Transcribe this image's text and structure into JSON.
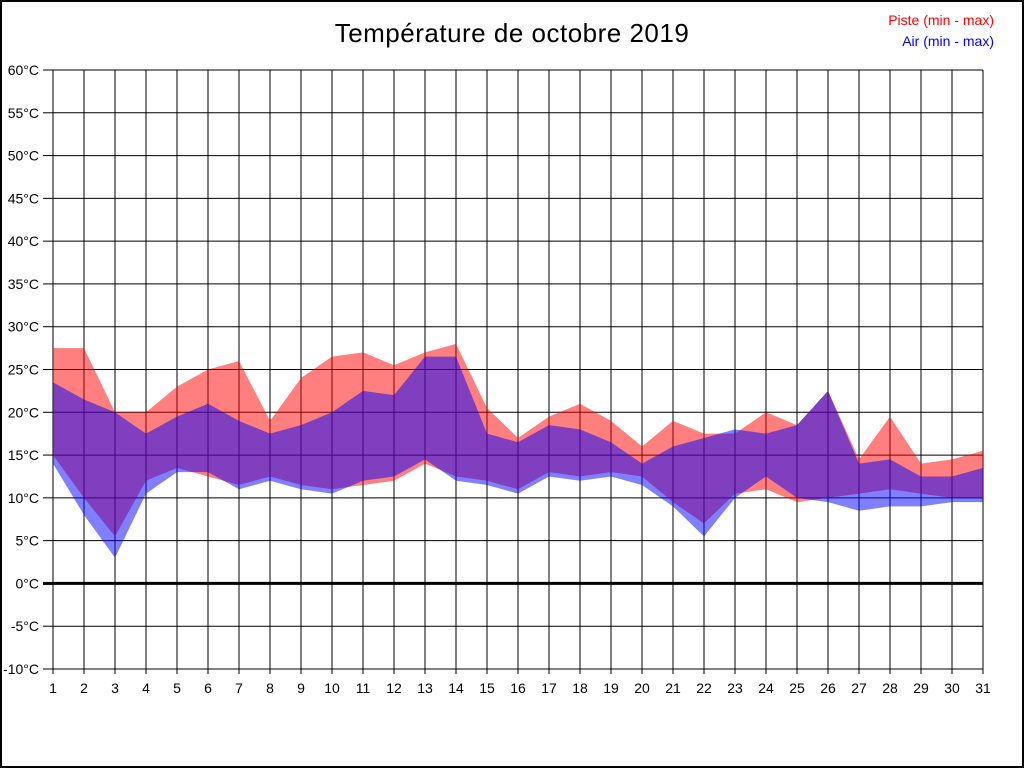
{
  "title": "Température de octobre 2019",
  "legend": [
    {
      "label": "Piste (min - max)",
      "color": "#ff0000"
    },
    {
      "label": "Air (min - max)",
      "color": "#0000ff"
    }
  ],
  "axes": {
    "y_unit": "°C",
    "y_tick_labels": [
      "60°C",
      "55°C",
      "50°C",
      "45°C",
      "40°C",
      "35°C",
      "30°C",
      "25°C",
      "20°C",
      "15°C",
      "10°C",
      "5°C",
      "0°C",
      "-5°C",
      "-10°C"
    ],
    "x_tick_labels": [
      "1",
      "2",
      "3",
      "4",
      "5",
      "6",
      "7",
      "8",
      "9",
      "10",
      "11",
      "12",
      "13",
      "14",
      "15",
      "16",
      "17",
      "18",
      "19",
      "20",
      "21",
      "22",
      "23",
      "24",
      "25",
      "26",
      "27",
      "28",
      "29",
      "30",
      "31"
    ]
  },
  "chart_data": {
    "type": "area",
    "title": "Température de octobre 2019",
    "xlabel": "",
    "ylabel": "",
    "x": [
      1,
      2,
      3,
      4,
      5,
      6,
      7,
      8,
      9,
      10,
      11,
      12,
      13,
      14,
      15,
      16,
      17,
      18,
      19,
      20,
      21,
      22,
      23,
      24,
      25,
      26,
      27,
      28,
      29,
      30,
      31
    ],
    "ylim": [
      -10,
      60
    ],
    "ytick_step": 5,
    "grid": true,
    "zero_line_width": 3,
    "legend_position": "top-right",
    "series": [
      {
        "name": "Piste (min - max)",
        "color": "#ff0000",
        "fill": "rgba(255,0,0,0.5)",
        "min": [
          15,
          10,
          5.5,
          12,
          13.5,
          12.5,
          11.5,
          12.5,
          11.5,
          11,
          11.5,
          12,
          14,
          12.5,
          12,
          11,
          13,
          12.5,
          13,
          12.5,
          9.5,
          7,
          10.5,
          11,
          9.5,
          10,
          10.5,
          11,
          10.5,
          10,
          10
        ],
        "max": [
          27.5,
          27.5,
          20,
          20,
          23,
          25,
          26,
          19,
          24,
          26.5,
          27,
          25.5,
          27,
          28,
          20.5,
          17,
          19.5,
          21,
          19,
          16,
          19,
          17.5,
          17.5,
          20,
          18.5,
          22.5,
          14.5,
          19.5,
          14,
          14.5,
          15.5
        ]
      },
      {
        "name": "Air (min - max)",
        "color": "#0000ff",
        "fill": "rgba(0,0,255,0.5)",
        "min": [
          14,
          8,
          3,
          10.5,
          13,
          13,
          11,
          12,
          11,
          10.5,
          12,
          12.5,
          14.5,
          12,
          11.5,
          10.5,
          12.5,
          12,
          12.5,
          11.5,
          9,
          5.5,
          10,
          12.5,
          10,
          9.5,
          8.5,
          9,
          9,
          9.5,
          9.5
        ],
        "max": [
          23.5,
          21.5,
          20,
          17.5,
          19.5,
          21,
          19,
          17.5,
          18.5,
          20,
          22.5,
          22,
          26.5,
          26.5,
          17.5,
          16.5,
          18.5,
          18,
          16.5,
          14,
          16,
          17,
          18,
          17.5,
          18.5,
          22.5,
          14,
          14.5,
          12.5,
          12.5,
          13.5
        ]
      }
    ]
  }
}
